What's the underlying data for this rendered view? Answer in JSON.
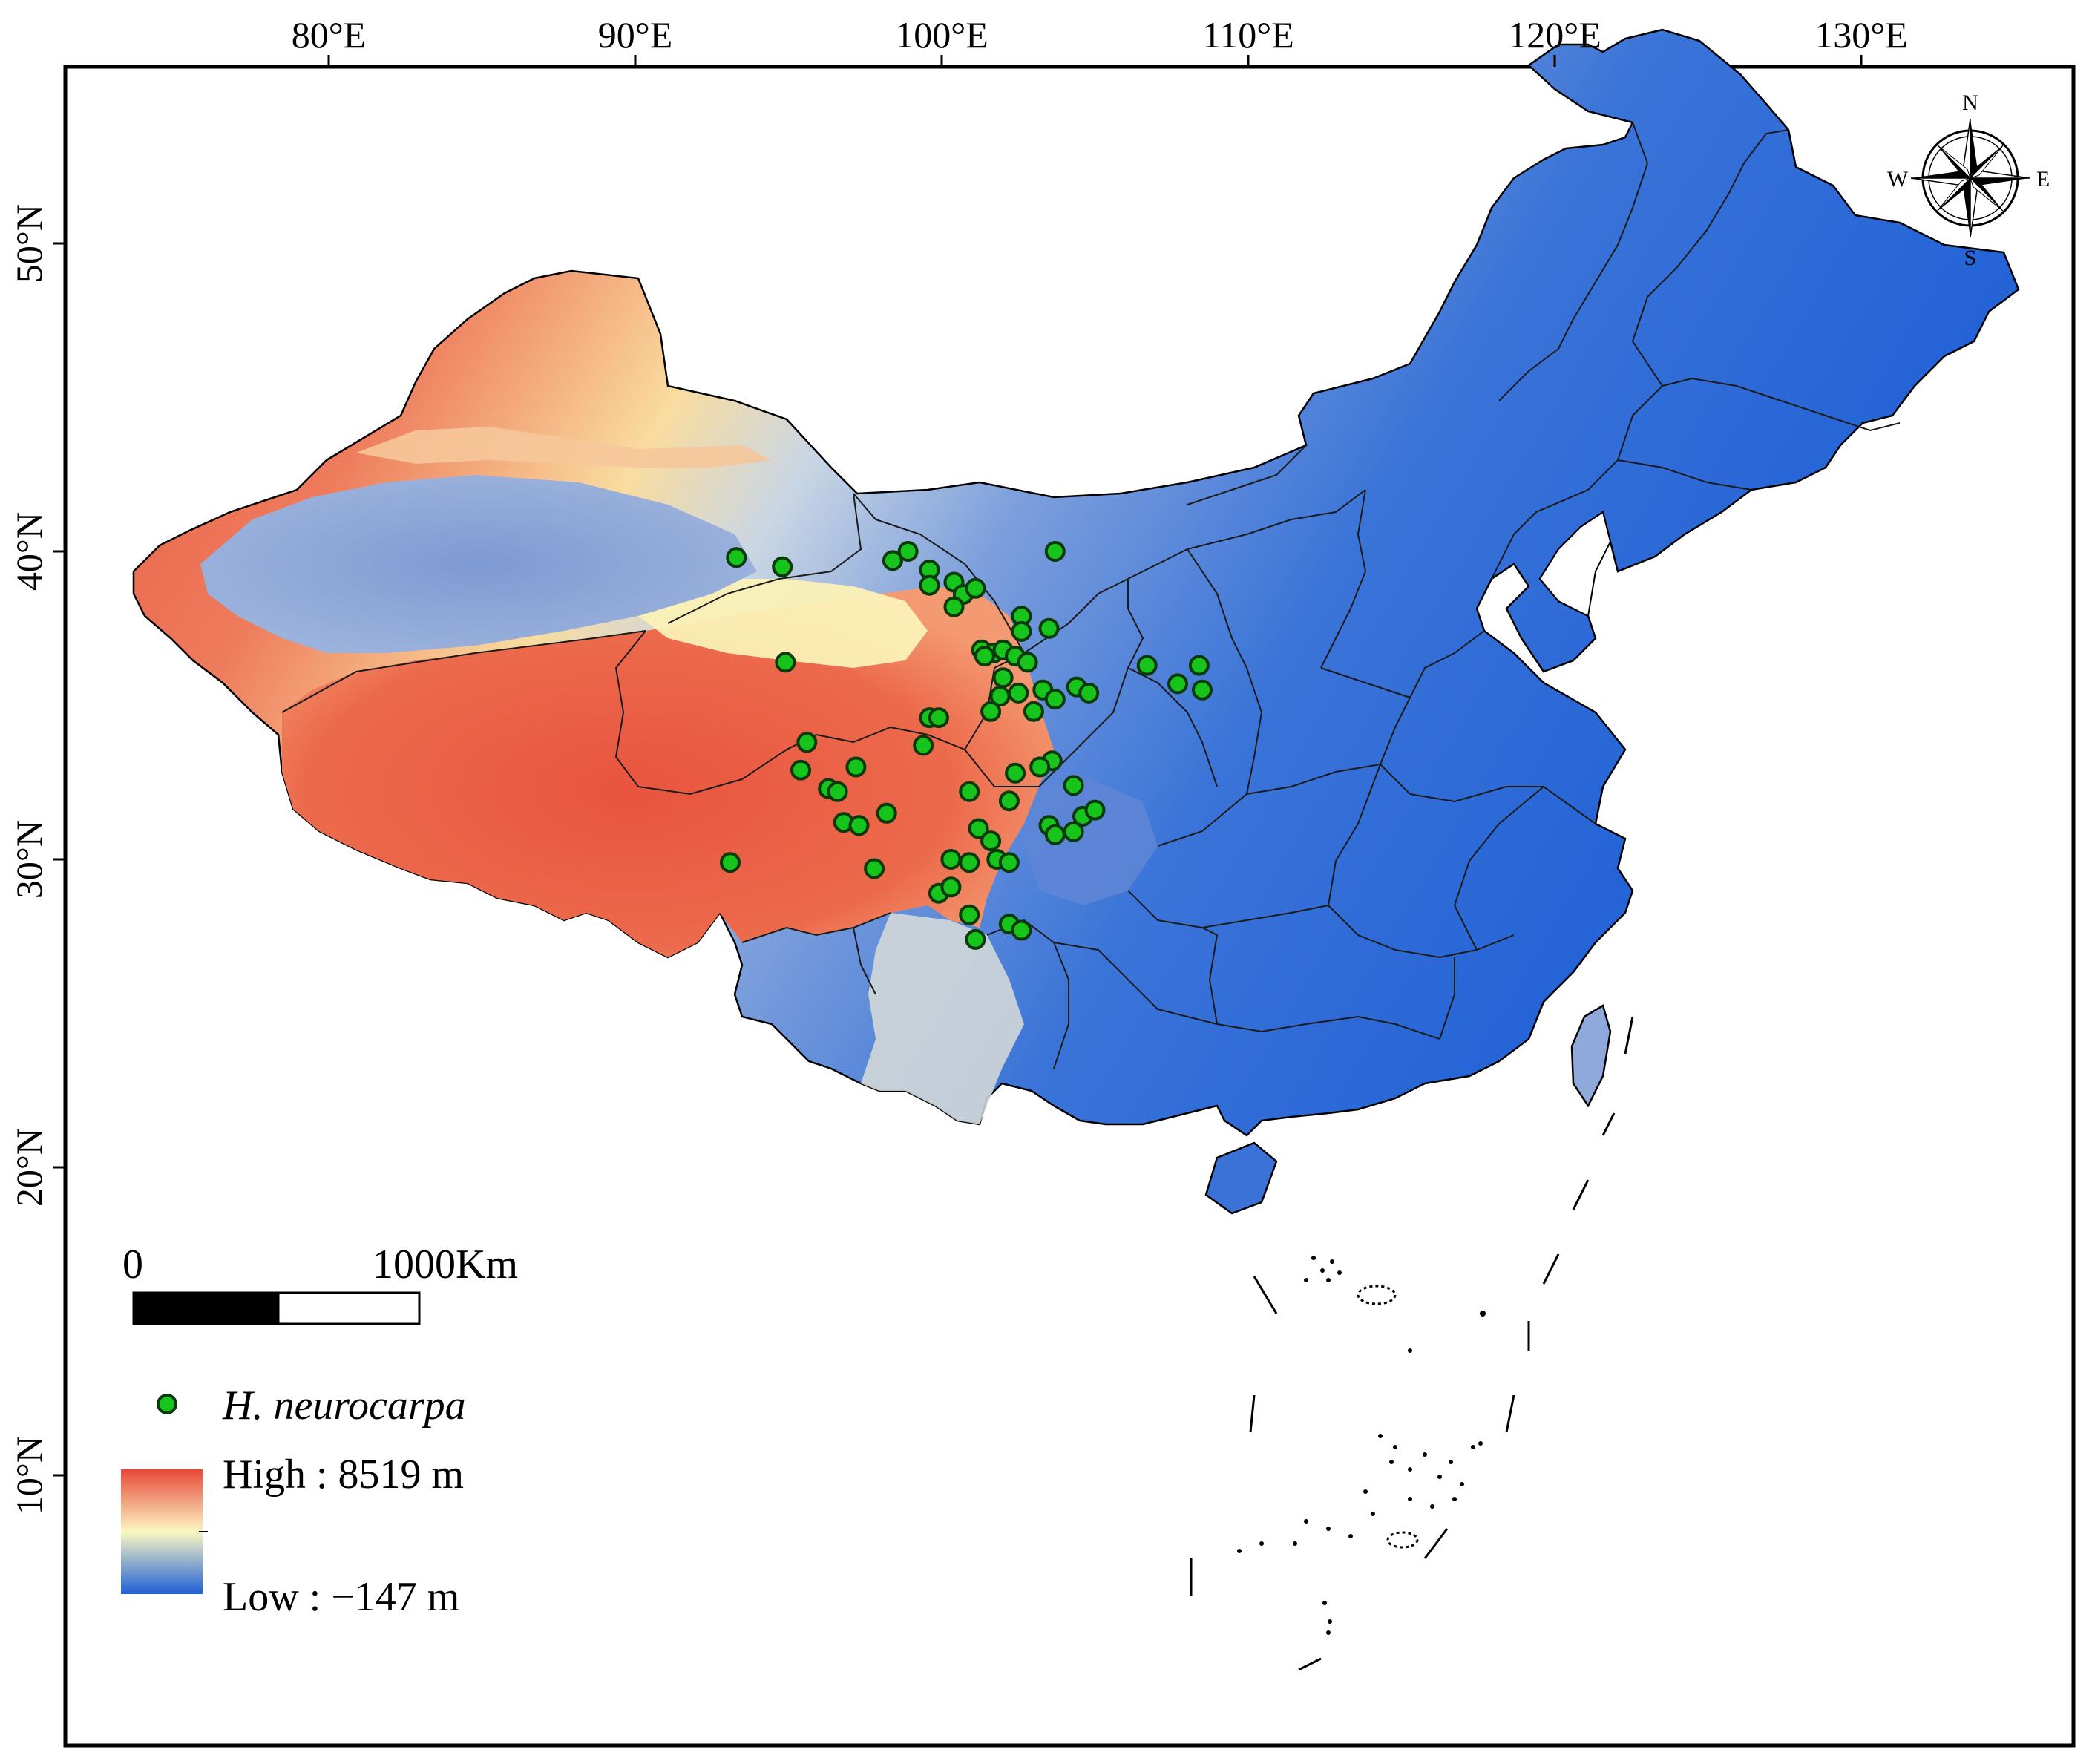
{
  "map": {
    "x_ticks": [
      {
        "value": 80,
        "label": "80°E"
      },
      {
        "value": 90,
        "label": "90°E"
      },
      {
        "value": 100,
        "label": "100°E"
      },
      {
        "value": 110,
        "label": "110°E"
      },
      {
        "value": 120,
        "label": "120°E"
      },
      {
        "value": 130,
        "label": "130°E"
      }
    ],
    "y_ticks": [
      {
        "value": 50,
        "label": "50°N"
      },
      {
        "value": 40,
        "label": "40°N"
      },
      {
        "value": 30,
        "label": "30°N"
      },
      {
        "value": 20,
        "label": "20°N"
      },
      {
        "value": 10,
        "label": "10°N"
      }
    ],
    "extent": {
      "lon": [
        71.4,
        135.7
      ],
      "lat": [
        2.3,
        56.8
      ]
    },
    "colors": {
      "high": "#e8493a",
      "mid": "#fbf7c2",
      "low": "#1f60d6",
      "point_fill": "#16c41c",
      "point_stroke": "#0a3a0a"
    }
  },
  "compass": {
    "n": "N",
    "s": "S",
    "e": "E",
    "w": "W"
  },
  "scale_bar": {
    "start_label": "0",
    "end_label": "1000Km"
  },
  "legend": {
    "species_label": "H. neurocarpa",
    "high_label": "High : 8519 m",
    "low_label": "Low : −147 m"
  },
  "points": [
    {
      "lon": 93.3,
      "lat": 39.8
    },
    {
      "lon": 94.8,
      "lat": 39.5
    },
    {
      "lon": 98.4,
      "lat": 39.7
    },
    {
      "lon": 98.9,
      "lat": 40.0
    },
    {
      "lon": 99.6,
      "lat": 39.4
    },
    {
      "lon": 99.6,
      "lat": 38.9
    },
    {
      "lon": 100.4,
      "lat": 39.0
    },
    {
      "lon": 100.7,
      "lat": 38.6
    },
    {
      "lon": 101.1,
      "lat": 38.8
    },
    {
      "lon": 100.4,
      "lat": 38.2
    },
    {
      "lon": 103.7,
      "lat": 40.0
    },
    {
      "lon": 102.6,
      "lat": 37.9
    },
    {
      "lon": 102.6,
      "lat": 37.4
    },
    {
      "lon": 103.5,
      "lat": 37.5
    },
    {
      "lon": 101.3,
      "lat": 36.8
    },
    {
      "lon": 101.7,
      "lat": 36.7
    },
    {
      "lon": 102.0,
      "lat": 36.8
    },
    {
      "lon": 102.4,
      "lat": 36.6
    },
    {
      "lon": 102.8,
      "lat": 36.4
    },
    {
      "lon": 101.4,
      "lat": 36.6
    },
    {
      "lon": 94.9,
      "lat": 36.4
    },
    {
      "lon": 102.0,
      "lat": 35.9
    },
    {
      "lon": 101.9,
      "lat": 35.3
    },
    {
      "lon": 102.5,
      "lat": 35.4
    },
    {
      "lon": 103.3,
      "lat": 35.5
    },
    {
      "lon": 103.7,
      "lat": 35.2
    },
    {
      "lon": 104.4,
      "lat": 35.6
    },
    {
      "lon": 104.8,
      "lat": 35.4
    },
    {
      "lon": 106.7,
      "lat": 36.3
    },
    {
      "lon": 107.7,
      "lat": 35.7
    },
    {
      "lon": 108.4,
      "lat": 36.3
    },
    {
      "lon": 108.5,
      "lat": 35.5
    },
    {
      "lon": 101.6,
      "lat": 34.8
    },
    {
      "lon": 103.0,
      "lat": 34.8
    },
    {
      "lon": 99.6,
      "lat": 34.6
    },
    {
      "lon": 99.9,
      "lat": 34.6
    },
    {
      "lon": 99.4,
      "lat": 33.7
    },
    {
      "lon": 95.6,
      "lat": 33.8
    },
    {
      "lon": 95.4,
      "lat": 32.9
    },
    {
      "lon": 97.2,
      "lat": 33.0
    },
    {
      "lon": 96.3,
      "lat": 32.3
    },
    {
      "lon": 96.6,
      "lat": 32.2
    },
    {
      "lon": 103.6,
      "lat": 33.2
    },
    {
      "lon": 103.2,
      "lat": 33.0
    },
    {
      "lon": 102.4,
      "lat": 32.8
    },
    {
      "lon": 104.3,
      "lat": 32.4
    },
    {
      "lon": 100.9,
      "lat": 32.2
    },
    {
      "lon": 102.2,
      "lat": 31.9
    },
    {
      "lon": 98.2,
      "lat": 31.5
    },
    {
      "lon": 96.8,
      "lat": 31.2
    },
    {
      "lon": 97.3,
      "lat": 31.1
    },
    {
      "lon": 101.2,
      "lat": 31.0
    },
    {
      "lon": 101.6,
      "lat": 30.6
    },
    {
      "lon": 103.5,
      "lat": 31.1
    },
    {
      "lon": 103.7,
      "lat": 30.8
    },
    {
      "lon": 104.3,
      "lat": 30.9
    },
    {
      "lon": 104.6,
      "lat": 31.4
    },
    {
      "lon": 105.0,
      "lat": 31.6
    },
    {
      "lon": 100.3,
      "lat": 30.0
    },
    {
      "lon": 100.9,
      "lat": 29.9
    },
    {
      "lon": 101.8,
      "lat": 30.0
    },
    {
      "lon": 102.2,
      "lat": 29.9
    },
    {
      "lon": 97.8,
      "lat": 29.7
    },
    {
      "lon": 93.1,
      "lat": 29.9
    },
    {
      "lon": 99.9,
      "lat": 28.9
    },
    {
      "lon": 100.3,
      "lat": 29.1
    },
    {
      "lon": 100.9,
      "lat": 28.2
    },
    {
      "lon": 102.2,
      "lat": 27.9
    },
    {
      "lon": 102.6,
      "lat": 27.7
    },
    {
      "lon": 101.1,
      "lat": 27.4
    }
  ]
}
